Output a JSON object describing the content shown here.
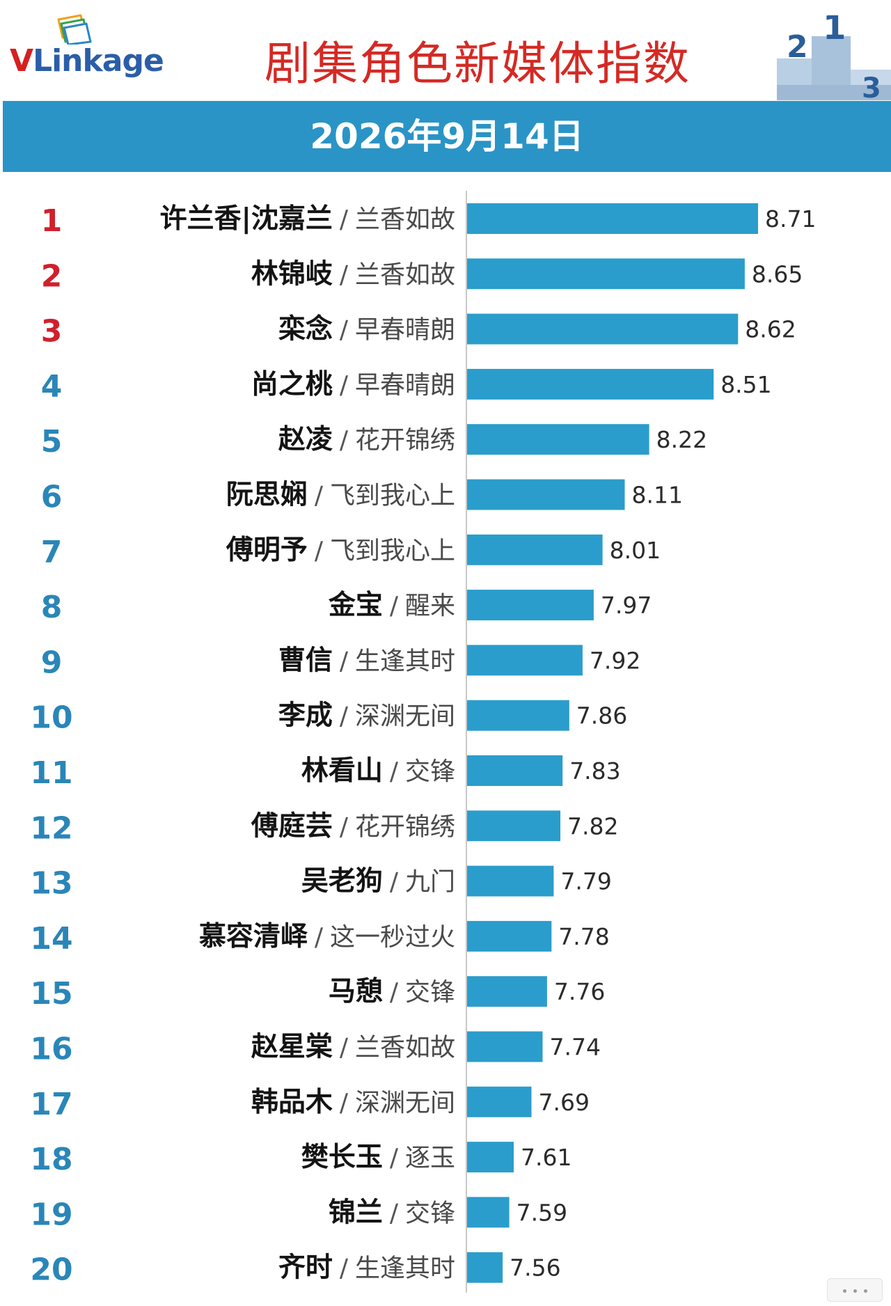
{
  "header": {
    "logo_v": "V",
    "logo_rest": "Linkage",
    "title": "剧集角色新媒体指数",
    "date": "2026年9月14日"
  },
  "colors": {
    "title_red": "#d42a25",
    "banner_blue": "#2a94c6",
    "bar_blue": "#2a9dcc",
    "rank_red": "#d0202c",
    "rank_blue": "#2a86b8"
  },
  "chart_data": {
    "type": "bar",
    "orientation": "horizontal",
    "title": "剧集角色新媒体指数",
    "subtitle": "2026年9月14日",
    "xlim": [
      7.4,
      8.8
    ],
    "grid": false,
    "legend": "none",
    "separator": "/",
    "categories": [
      "许兰香|沈嘉兰",
      "林锦岐",
      "栾念",
      "尚之桃",
      "赵凌",
      "阮思娴",
      "傅明予",
      "金宝",
      "曹信",
      "李成",
      "林看山",
      "傅庭芸",
      "吴老狗",
      "慕容清峄",
      "马憩",
      "赵星棠",
      "韩品木",
      "樊长玉",
      "锦兰",
      "齐时"
    ],
    "rows": [
      {
        "rank": "1",
        "name": "许兰香|沈嘉兰",
        "show": "兰香如故",
        "value": 8.71
      },
      {
        "rank": "2",
        "name": "林锦岐",
        "show": "兰香如故",
        "value": 8.65
      },
      {
        "rank": "3",
        "name": "栾念",
        "show": "早春晴朗",
        "value": 8.62
      },
      {
        "rank": "4",
        "name": "尚之桃",
        "show": "早春晴朗",
        "value": 8.51
      },
      {
        "rank": "5",
        "name": "赵凌",
        "show": "花开锦绣",
        "value": 8.22
      },
      {
        "rank": "6",
        "name": "阮思娴",
        "show": "飞到我心上",
        "value": 8.11
      },
      {
        "rank": "7",
        "name": "傅明予",
        "show": "飞到我心上",
        "value": 8.01
      },
      {
        "rank": "8",
        "name": "金宝",
        "show": "醒来",
        "value": 7.97
      },
      {
        "rank": "9",
        "name": "曹信",
        "show": "生逢其时",
        "value": 7.92
      },
      {
        "rank": "10",
        "name": "李成",
        "show": "深渊无间",
        "value": 7.86
      },
      {
        "rank": "11",
        "name": "林看山",
        "show": "交锋",
        "value": 7.83
      },
      {
        "rank": "12",
        "name": "傅庭芸",
        "show": "花开锦绣",
        "value": 7.82
      },
      {
        "rank": "13",
        "name": "吴老狗",
        "show": "九门",
        "value": 7.79
      },
      {
        "rank": "14",
        "name": "慕容清峄",
        "show": "这一秒过火",
        "value": 7.78
      },
      {
        "rank": "15",
        "name": "马憩",
        "show": "交锋",
        "value": 7.76
      },
      {
        "rank": "16",
        "name": "赵星棠",
        "show": "兰香如故",
        "value": 7.74
      },
      {
        "rank": "17",
        "name": "韩品木",
        "show": "深渊无间",
        "value": 7.69
      },
      {
        "rank": "18",
        "name": "樊长玉",
        "show": "逐玉",
        "value": 7.61
      },
      {
        "rank": "19",
        "name": "锦兰",
        "show": "交锋",
        "value": 7.59
      },
      {
        "rank": "20",
        "name": "齐时",
        "show": "生逢其时",
        "value": 7.56
      }
    ]
  }
}
